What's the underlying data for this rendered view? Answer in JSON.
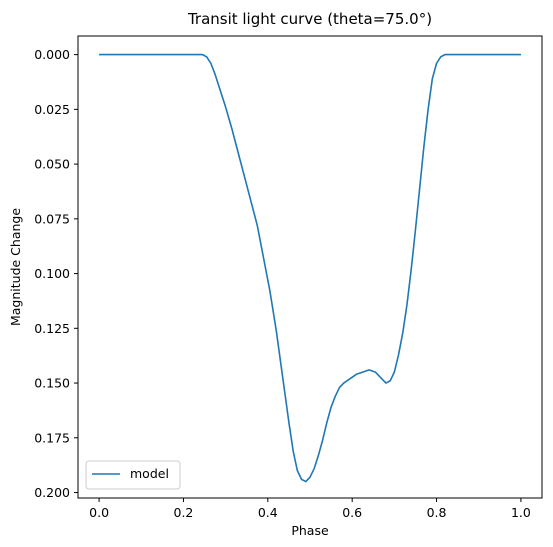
{
  "chart_data": {
    "type": "line",
    "title": "Transit light curve (theta=75.0°)",
    "xlabel": "Phase",
    "ylabel": "Magnitude Change",
    "xlim": [
      -0.05,
      1.05
    ],
    "ylim": [
      0.2025,
      -0.0085
    ],
    "y_inverted": true,
    "grid": false,
    "legend": "lower-left",
    "x_ticks": [
      "0.0",
      "0.2",
      "0.4",
      "0.6",
      "0.8",
      "1.0"
    ],
    "y_ticks": [
      "0.000",
      "0.025",
      "0.050",
      "0.075",
      "0.100",
      "0.125",
      "0.150",
      "0.175",
      "0.200"
    ],
    "series": [
      {
        "name": "model",
        "color": "#1f77b4",
        "x": [
          0.0,
          0.1,
          0.2,
          0.245,
          0.255,
          0.265,
          0.275,
          0.285,
          0.3,
          0.315,
          0.33,
          0.345,
          0.36,
          0.375,
          0.39,
          0.405,
          0.42,
          0.435,
          0.45,
          0.46,
          0.47,
          0.48,
          0.49,
          0.5,
          0.51,
          0.52,
          0.53,
          0.54,
          0.55,
          0.56,
          0.57,
          0.58,
          0.595,
          0.61,
          0.625,
          0.64,
          0.655,
          0.67,
          0.68,
          0.69,
          0.7,
          0.71,
          0.72,
          0.73,
          0.74,
          0.75,
          0.76,
          0.77,
          0.78,
          0.79,
          0.8,
          0.81,
          0.82,
          0.9,
          1.0
        ],
        "y": [
          0.0,
          0.0,
          0.0,
          0.0,
          0.001,
          0.004,
          0.009,
          0.015,
          0.024,
          0.034,
          0.045,
          0.056,
          0.067,
          0.078,
          0.093,
          0.108,
          0.126,
          0.147,
          0.168,
          0.181,
          0.19,
          0.194,
          0.195,
          0.193,
          0.189,
          0.183,
          0.176,
          0.168,
          0.161,
          0.156,
          0.152,
          0.15,
          0.148,
          0.146,
          0.145,
          0.144,
          0.145,
          0.148,
          0.15,
          0.149,
          0.145,
          0.137,
          0.127,
          0.114,
          0.098,
          0.08,
          0.061,
          0.042,
          0.025,
          0.011,
          0.004,
          0.001,
          0.0,
          0.0,
          0.0
        ]
      }
    ]
  }
}
